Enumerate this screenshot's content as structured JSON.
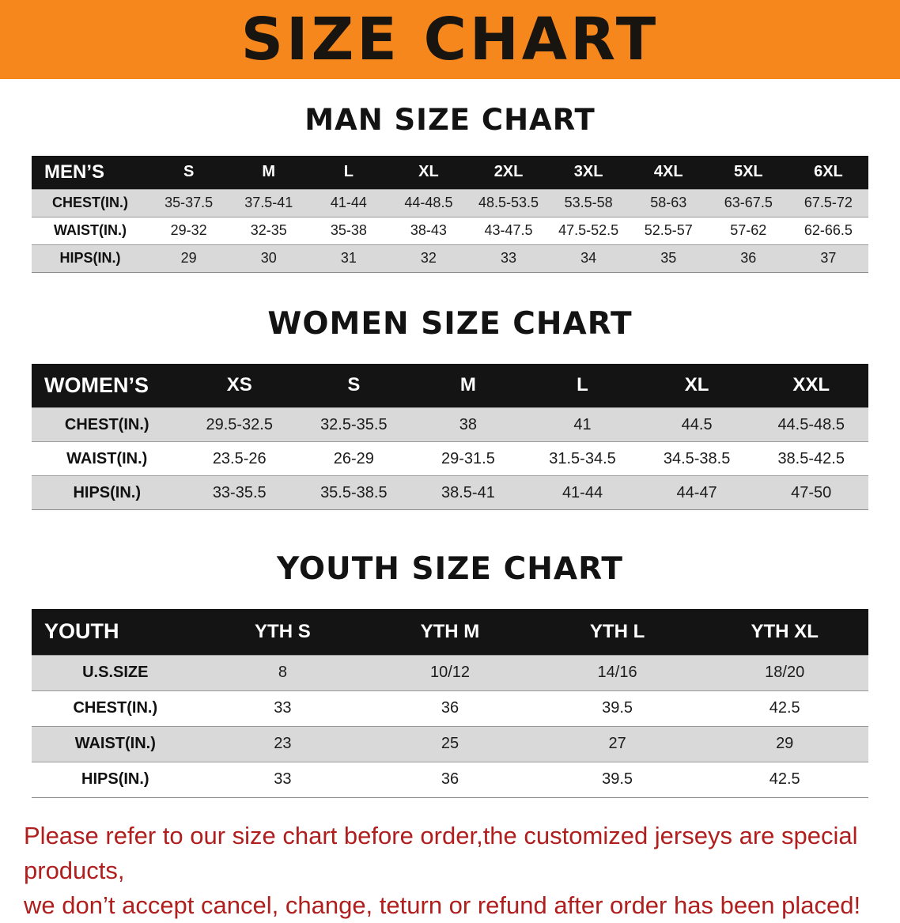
{
  "banner": {
    "title": "SIZE CHART"
  },
  "colors": {
    "banner_bg": "#F6871D",
    "banner_text": "#181410",
    "header_bg": "#141414",
    "header_text": "#FFFFFF",
    "stripe_bg": "#D9D9D9",
    "notice_red": "#B01E1E",
    "text_black": "#121212"
  },
  "sections": [
    {
      "heading": "MAN SIZE CHART",
      "table": {
        "header": [
          "MEN’S",
          "S",
          "M",
          "L",
          "XL",
          "2XL",
          "3XL",
          "4XL",
          "5XL",
          "6XL"
        ],
        "rows": [
          [
            "CHEST(IN.)",
            "35-37.5",
            "37.5-41",
            "41-44",
            "44-48.5",
            "48.5-53.5",
            "53.5-58",
            "58-63",
            "63-67.5",
            "67.5-72"
          ],
          [
            "WAIST(IN.)",
            "29-32",
            "32-35",
            "35-38",
            "38-43",
            "43-47.5",
            "47.5-52.5",
            "52.5-57",
            "57-62",
            "62-66.5"
          ],
          [
            "HIPS(IN.)",
            "29",
            "30",
            "31",
            "32",
            "33",
            "34",
            "35",
            "36",
            "37"
          ]
        ]
      }
    },
    {
      "heading": "WOMEN SIZE CHART",
      "table": {
        "header": [
          "WOMEN’S",
          "XS",
          "S",
          "M",
          "L",
          "XL",
          "XXL"
        ],
        "rows": [
          [
            "CHEST(IN.)",
            "29.5-32.5",
            "32.5-35.5",
            "38",
            "41",
            "44.5",
            "44.5-48.5"
          ],
          [
            "WAIST(IN.)",
            "23.5-26",
            "26-29",
            "29-31.5",
            "31.5-34.5",
            "34.5-38.5",
            "38.5-42.5"
          ],
          [
            "HIPS(IN.)",
            "33-35.5",
            "35.5-38.5",
            "38.5-41",
            "41-44",
            "44-47",
            "47-50"
          ]
        ]
      }
    },
    {
      "heading": "YOUTH SIZE CHART",
      "table": {
        "header": [
          "YOUTH",
          "YTH S",
          "YTH M",
          "YTH L",
          "YTH XL"
        ],
        "rows": [
          [
            "U.S.SIZE",
            "8",
            "10/12",
            "14/16",
            "18/20"
          ],
          [
            "CHEST(IN.)",
            "33",
            "36",
            "39.5",
            "42.5"
          ],
          [
            "WAIST(IN.)",
            "23",
            "25",
            "27",
            "29"
          ],
          [
            "HIPS(IN.)",
            "33",
            "36",
            "39.5",
            "42.5"
          ]
        ]
      }
    }
  ],
  "footer": {
    "lines": [
      "Please refer to our size chart before order,the customized jerseys are special products,",
      "we don’t accept cancel, change, teturn or refund after order has been placed!"
    ]
  }
}
